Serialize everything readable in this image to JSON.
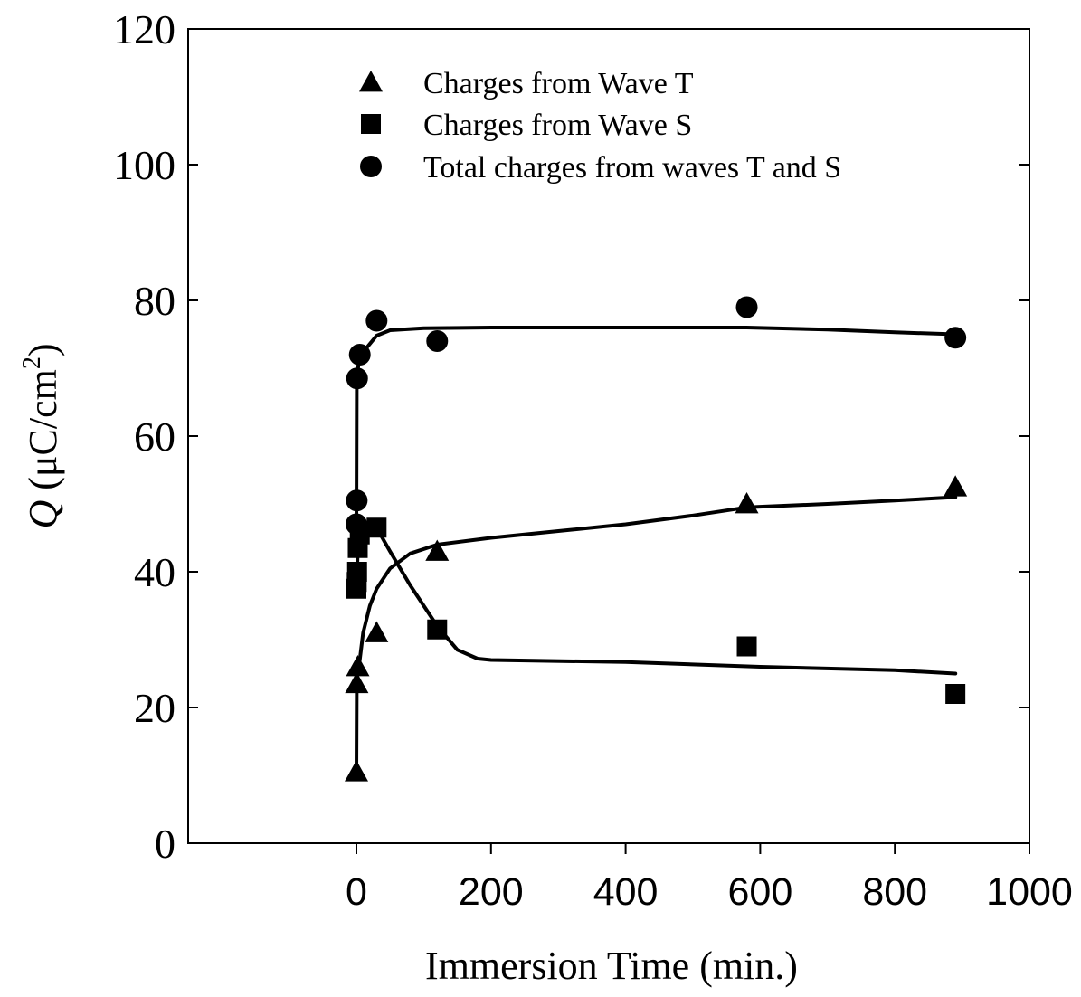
{
  "chart_data": {
    "type": "scatter",
    "xlabel": "Immersion Time (min.)",
    "ylabel": {
      "symbol": "Q",
      "unit_prefix": " (μC/cm",
      "unit_exp": "2",
      "unit_suffix": ")"
    },
    "xlim": [
      -250,
      1000
    ],
    "ylim": [
      0,
      120
    ],
    "x_ticks": [
      0,
      200,
      400,
      600,
      800,
      1000
    ],
    "y_ticks": [
      0,
      20,
      40,
      60,
      80,
      100,
      120
    ],
    "x_tick_labels": [
      "0",
      "200",
      "400",
      "600",
      "800",
      "1000"
    ],
    "y_tick_labels": [
      "0",
      "20",
      "40",
      "60",
      "80",
      "100",
      "120"
    ],
    "grid": false,
    "legend_position": "top-center",
    "series": [
      {
        "name": "Charges from Wave T",
        "marker": "triangle",
        "color": "#000000",
        "points": [
          [
            0,
            10.5
          ],
          [
            0.5,
            23.5
          ],
          [
            2,
            26
          ],
          [
            30,
            31
          ],
          [
            120,
            43
          ],
          [
            580,
            50
          ],
          [
            890,
            52.5
          ]
        ],
        "fit": [
          [
            0,
            10.5
          ],
          [
            0.5,
            24
          ],
          [
            5,
            27
          ],
          [
            10,
            31
          ],
          [
            20,
            35
          ],
          [
            30,
            37.5
          ],
          [
            50,
            40.5
          ],
          [
            80,
            42.7
          ],
          [
            120,
            44
          ],
          [
            200,
            45
          ],
          [
            300,
            46
          ],
          [
            400,
            47
          ],
          [
            500,
            48.3
          ],
          [
            580,
            49.5
          ],
          [
            700,
            50
          ],
          [
            800,
            50.5
          ],
          [
            890,
            51
          ]
        ]
      },
      {
        "name": "Charges from Wave S",
        "marker": "square",
        "color": "#000000",
        "points": [
          [
            0,
            37.5
          ],
          [
            0.5,
            38.5
          ],
          [
            1,
            40
          ],
          [
            2,
            43.5
          ],
          [
            5,
            45.5
          ],
          [
            30,
            46.5
          ],
          [
            120,
            31.5
          ],
          [
            580,
            29
          ],
          [
            890,
            22
          ]
        ],
        "fit": [
          [
            0,
            37.5
          ],
          [
            2,
            43
          ],
          [
            5,
            45.5
          ],
          [
            15,
            46.3
          ],
          [
            30,
            46.5
          ],
          [
            50,
            43
          ],
          [
            80,
            38
          ],
          [
            120,
            32
          ],
          [
            150,
            28.5
          ],
          [
            180,
            27.2
          ],
          [
            200,
            27
          ],
          [
            400,
            26.7
          ],
          [
            600,
            26
          ],
          [
            800,
            25.5
          ],
          [
            890,
            25
          ]
        ]
      },
      {
        "name": "Total charges from waves T and S",
        "marker": "circle",
        "color": "#000000",
        "points": [
          [
            0,
            47
          ],
          [
            0.5,
            50.5
          ],
          [
            1,
            68.5
          ],
          [
            5,
            72
          ],
          [
            30,
            77
          ],
          [
            120,
            74
          ],
          [
            580,
            79
          ],
          [
            890,
            74.5
          ]
        ],
        "fit": [
          [
            0,
            47
          ],
          [
            0.5,
            68
          ],
          [
            3,
            70.5
          ],
          [
            8,
            71.8
          ],
          [
            15,
            73
          ],
          [
            30,
            74.8
          ],
          [
            50,
            75.6
          ],
          [
            100,
            75.9
          ],
          [
            200,
            76
          ],
          [
            400,
            76
          ],
          [
            580,
            76
          ],
          [
            700,
            75.7
          ],
          [
            800,
            75.3
          ],
          [
            890,
            75
          ]
        ]
      }
    ]
  }
}
